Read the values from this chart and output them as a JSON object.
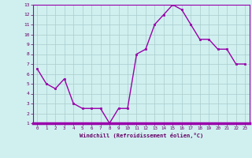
{
  "x": [
    0,
    1,
    2,
    3,
    4,
    5,
    6,
    7,
    8,
    9,
    10,
    11,
    12,
    13,
    14,
    15,
    16,
    17,
    18,
    19,
    20,
    21,
    22,
    23
  ],
  "y": [
    6.5,
    5.0,
    4.5,
    5.5,
    3.0,
    2.5,
    2.5,
    2.5,
    1.0,
    2.5,
    2.5,
    8.0,
    8.5,
    11.0,
    12.0,
    13.0,
    12.5,
    11.0,
    9.5,
    9.5,
    8.5,
    8.5,
    7.0,
    7.0
  ],
  "xlabel": "Windchill (Refroidissement éolien,°C)",
  "ylim": [
    1,
    13
  ],
  "xlim": [
    -0.5,
    23.5
  ],
  "yticks": [
    1,
    2,
    3,
    4,
    5,
    6,
    7,
    8,
    9,
    10,
    11,
    12,
    13
  ],
  "xticks": [
    0,
    1,
    2,
    3,
    4,
    5,
    6,
    7,
    8,
    9,
    10,
    11,
    12,
    13,
    14,
    15,
    16,
    17,
    18,
    19,
    20,
    21,
    22,
    23
  ],
  "line_color": "#9900aa",
  "marker_color": "#9900aa",
  "bg_color": "#d0f0f0",
  "grid_color": "#aacccc",
  "label_color": "#660066",
  "spine_color": "#9900aa"
}
